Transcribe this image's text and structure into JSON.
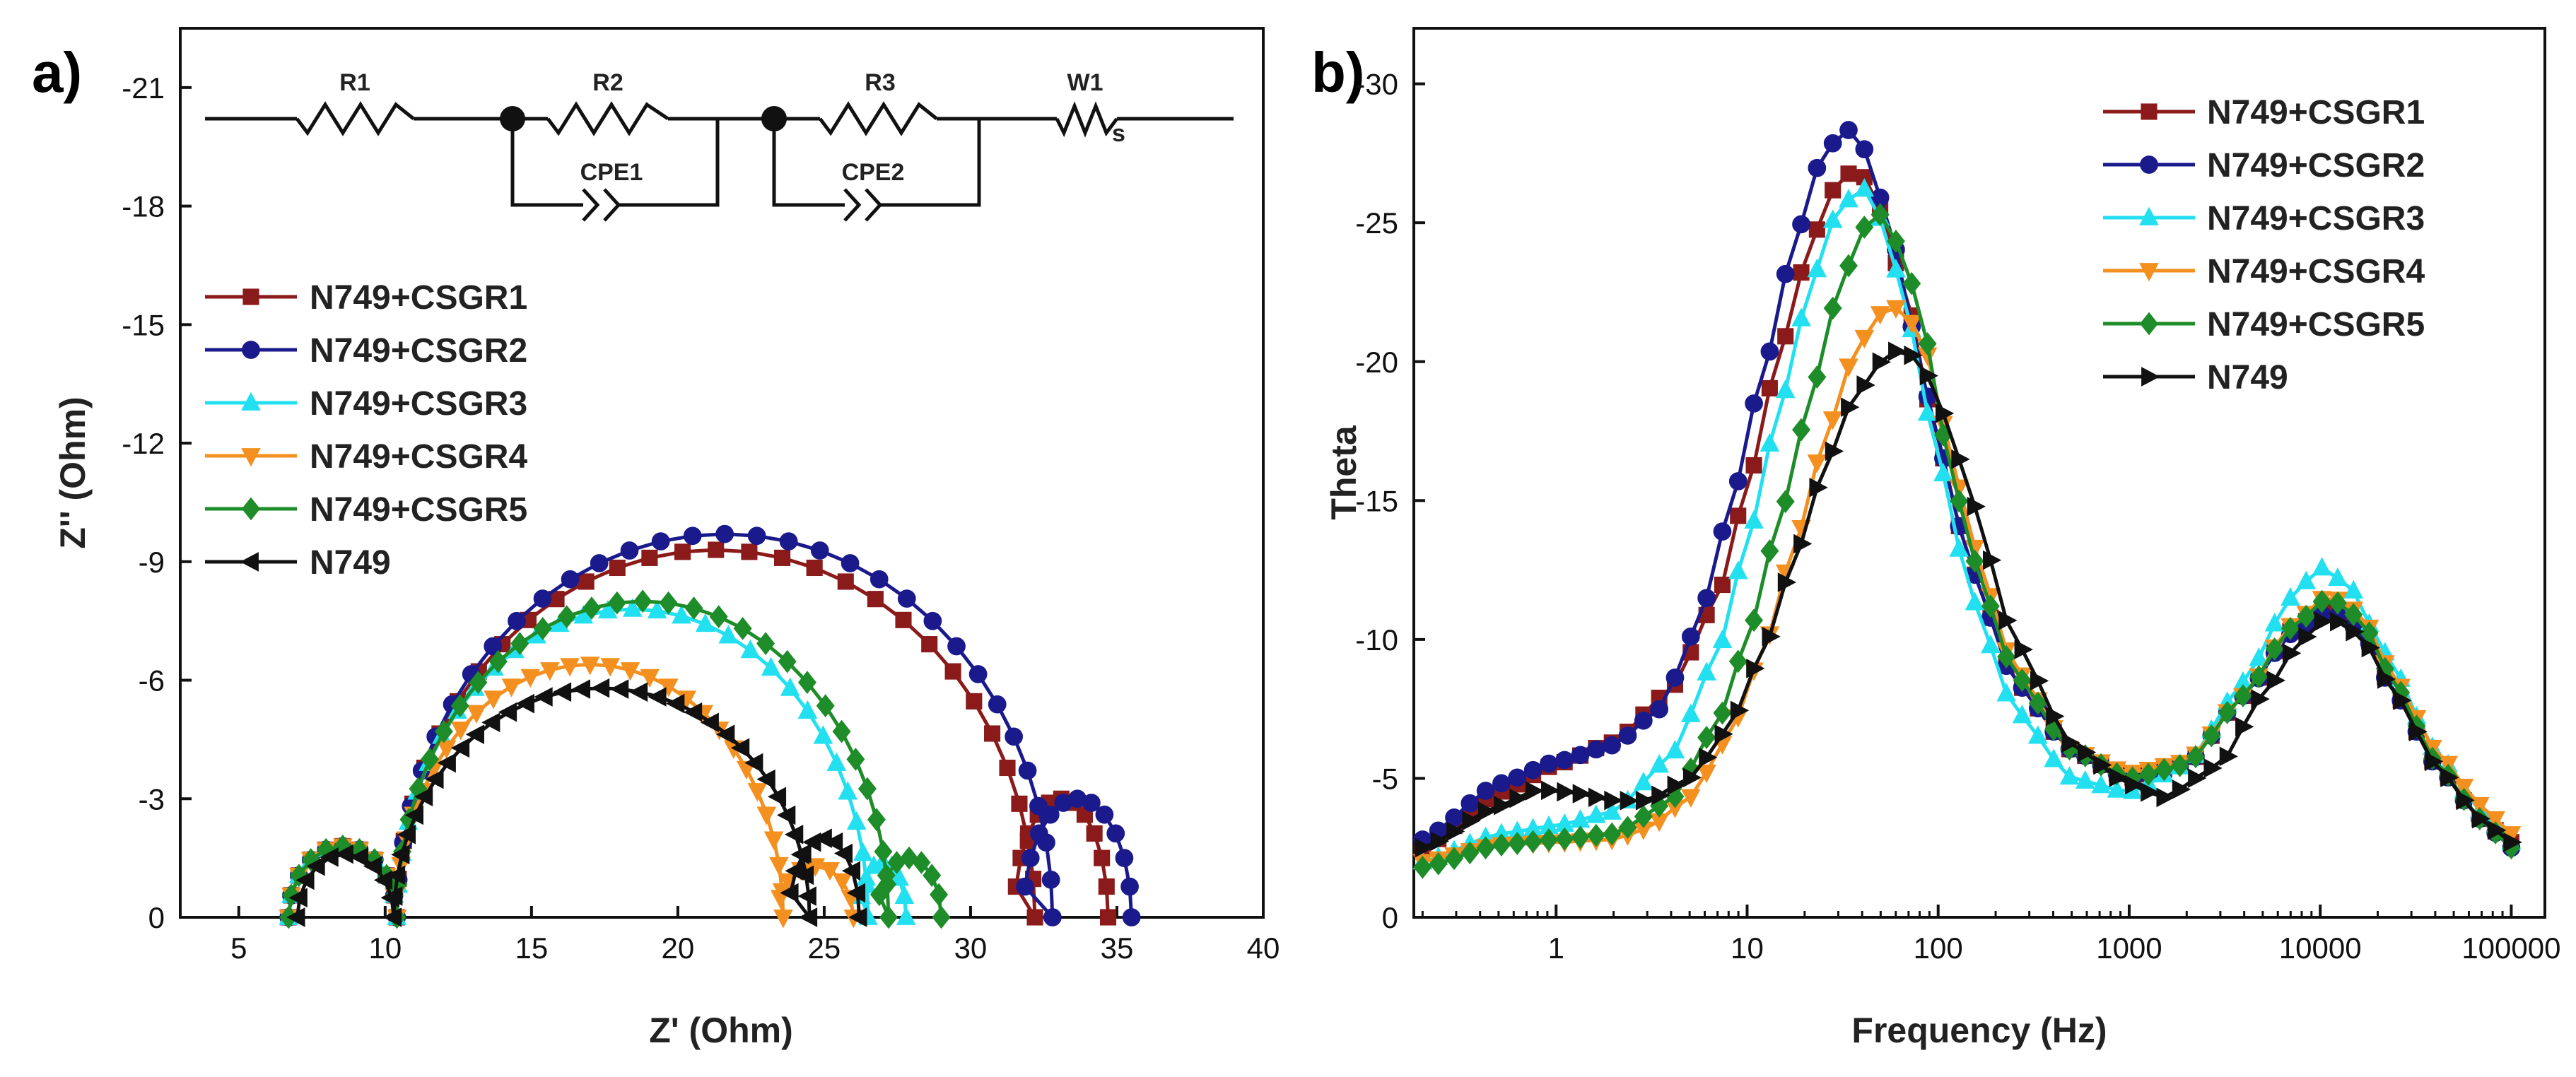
{
  "panels": {
    "a": {
      "label": "a)"
    },
    "b": {
      "label": "b)"
    }
  },
  "circuit": {
    "labels": [
      "R1",
      "R2",
      "R3",
      "W1",
      "CPE1",
      "CPE2"
    ],
    "warburg_subscript": "s"
  },
  "legend_entries": [
    "N749+CSGR1",
    "N749+CSGR2",
    "N749+CSGR3",
    "N749+CSGR4",
    "N749+CSGR5",
    "N749"
  ],
  "colors": {
    "N749+CSGR1": "#8b1a1a",
    "N749+CSGR2": "#1a1a8c",
    "N749+CSGR3": "#22e0f0",
    "N749+CSGR4": "#f39020",
    "N749+CSGR5": "#1e8c28",
    "N749": "#111111"
  },
  "chart_data": [
    {
      "id": "nyquist",
      "type": "scatter",
      "title": "",
      "xlabel": "Z' (Ohm)",
      "ylabel": "Z'' (Ohm)",
      "xlim": [
        3,
        40
      ],
      "ylim": [
        0,
        -22.5
      ],
      "xticks": [
        5,
        10,
        15,
        20,
        25,
        30,
        35,
        40
      ],
      "xtick_labels": [
        "5",
        "10",
        "15",
        "20",
        "25",
        "30",
        "35",
        "40"
      ],
      "yticks": [
        0,
        -3,
        -6,
        -9,
        -12,
        -15,
        -18,
        -21
      ],
      "ytick_labels": [
        "0",
        "-3",
        "-6",
        "-9",
        "-12",
        "-15",
        "-18",
        "-21"
      ],
      "legend_position": "left-middle",
      "series": [
        {
          "name": "N749+CSGR1",
          "marker": "square",
          "arcs": [
            {
              "x0": 6.7,
              "x1": 10.4,
              "h": 1.8
            },
            {
              "x0": 10.4,
              "x1": 32.2,
              "h": 9.3
            },
            {
              "x0": 31.5,
              "x1": 34.7,
              "h": 3.0
            }
          ],
          "npts": [
            10,
            30,
            12
          ]
        },
        {
          "name": "N749+CSGR2",
          "marker": "circle",
          "arcs": [
            {
              "x0": 6.7,
              "x1": 10.4,
              "h": 1.8
            },
            {
              "x0": 10.4,
              "x1": 32.8,
              "h": 9.7
            },
            {
              "x0": 31.8,
              "x1": 35.5,
              "h": 3.0
            }
          ],
          "npts": [
            10,
            32,
            12
          ]
        },
        {
          "name": "N749+CSGR3",
          "marker": "triangle-up",
          "arcs": [
            {
              "x0": 6.7,
              "x1": 10.4,
              "h": 1.8
            },
            {
              "x0": 10.4,
              "x1": 26.5,
              "h": 7.8
            },
            {
              "x0": 26.2,
              "x1": 27.8,
              "h": 1.4
            }
          ],
          "npts": [
            10,
            30,
            8
          ]
        },
        {
          "name": "N749+CSGR4",
          "marker": "triangle-down",
          "arcs": [
            {
              "x0": 6.7,
              "x1": 10.4,
              "h": 1.8
            },
            {
              "x0": 10.4,
              "x1": 23.6,
              "h": 6.4
            },
            {
              "x0": 23.4,
              "x1": 26.0,
              "h": 1.3
            }
          ],
          "npts": [
            10,
            30,
            8
          ]
        },
        {
          "name": "N749+CSGR5",
          "marker": "diamond",
          "arcs": [
            {
              "x0": 6.7,
              "x1": 10.4,
              "h": 1.8
            },
            {
              "x0": 10.4,
              "x1": 27.2,
              "h": 8.0
            },
            {
              "x0": 26.8,
              "x1": 29.0,
              "h": 1.5
            }
          ],
          "npts": [
            10,
            30,
            8
          ]
        },
        {
          "name": "N749",
          "marker": "triangle-left",
          "arcs": [
            {
              "x0": 7.0,
              "x1": 10.3,
              "h": 1.6
            },
            {
              "x0": 10.3,
              "x1": 24.5,
              "h": 5.8
            },
            {
              "x0": 23.8,
              "x1": 26.2,
              "h": 2.0
            }
          ],
          "npts": [
            10,
            34,
            10
          ]
        }
      ]
    },
    {
      "id": "bode",
      "type": "line",
      "title": "",
      "xlabel": "Frequency (Hz)",
      "ylabel": "Theta",
      "xscale": "log",
      "xlim": [
        0.18,
        150000
      ],
      "ylim": [
        0,
        -32
      ],
      "xticks": [
        1,
        10,
        100,
        1000,
        10000,
        100000
      ],
      "xtick_labels": [
        "1",
        "10",
        "100",
        "1000",
        "10000",
        "100000"
      ],
      "yticks": [
        0,
        -5,
        -10,
        -15,
        -20,
        -25,
        -30
      ],
      "ytick_labels": [
        "0",
        "-5",
        "-10",
        "-15",
        "-20",
        "-25",
        "-30"
      ],
      "legend_position": "top-right",
      "freq_range": [
        0.2,
        100000
      ],
      "series": [
        {
          "name": "N749+CSGR1",
          "marker": "square",
          "points": [
            [
              0.2,
              -2.5
            ],
            [
              0.5,
              -4.5
            ],
            [
              1,
              -5.5
            ],
            [
              2,
              -6.3
            ],
            [
              4,
              -8.2
            ],
            [
              7,
              -11.5
            ],
            [
              10,
              -15.5
            ],
            [
              15,
              -20.5
            ],
            [
              22,
              -24.5
            ],
            [
              30,
              -26.5
            ],
            [
              38,
              -27.0
            ],
            [
              50,
              -25.5
            ],
            [
              70,
              -22.0
            ],
            [
              100,
              -17.0
            ],
            [
              150,
              -12.5
            ],
            [
              250,
              -8.5
            ],
            [
              500,
              -6.0
            ],
            [
              1000,
              -5.0
            ],
            [
              2000,
              -5.5
            ],
            [
              4000,
              -8.0
            ],
            [
              7000,
              -10.3
            ],
            [
              11000,
              -11.2
            ],
            [
              16000,
              -10.5
            ],
            [
              25000,
              -8.0
            ],
            [
              40000,
              -5.5
            ],
            [
              70000,
              -3.5
            ],
            [
              100000,
              -2.7
            ]
          ]
        },
        {
          "name": "N749+CSGR2",
          "marker": "circle",
          "points": [
            [
              0.2,
              -2.8
            ],
            [
              0.5,
              -4.8
            ],
            [
              1,
              -5.6
            ],
            [
              2,
              -6.2
            ],
            [
              3.5,
              -7.5
            ],
            [
              5.5,
              -10.5
            ],
            [
              8,
              -14.5
            ],
            [
              12,
              -19.5
            ],
            [
              18,
              -24.5
            ],
            [
              25,
              -27.5
            ],
            [
              33,
              -28.4
            ],
            [
              42,
              -27.6
            ],
            [
              55,
              -25.0
            ],
            [
              75,
              -21.0
            ],
            [
              100,
              -17.0
            ],
            [
              150,
              -12.5
            ],
            [
              250,
              -8.5
            ],
            [
              500,
              -6.0
            ],
            [
              1000,
              -5.0
            ],
            [
              2000,
              -5.5
            ],
            [
              4000,
              -8.0
            ],
            [
              7000,
              -10.2
            ],
            [
              11000,
              -11.0
            ],
            [
              16000,
              -10.4
            ],
            [
              25000,
              -8.0
            ],
            [
              40000,
              -5.5
            ],
            [
              70000,
              -3.5
            ],
            [
              100000,
              -2.5
            ]
          ]
        },
        {
          "name": "N749+CSGR3",
          "marker": "triangle-up",
          "points": [
            [
              0.2,
              -2.0
            ],
            [
              0.5,
              -3.0
            ],
            [
              1,
              -3.3
            ],
            [
              2,
              -3.8
            ],
            [
              4,
              -5.8
            ],
            [
              7,
              -9.5
            ],
            [
              10,
              -13.5
            ],
            [
              15,
              -18.5
            ],
            [
              22,
              -23.0
            ],
            [
              30,
              -25.5
            ],
            [
              40,
              -26.3
            ],
            [
              52,
              -25.0
            ],
            [
              70,
              -21.5
            ],
            [
              100,
              -16.5
            ],
            [
              150,
              -11.5
            ],
            [
              250,
              -7.5
            ],
            [
              500,
              -5.0
            ],
            [
              1000,
              -4.5
            ],
            [
              2000,
              -5.5
            ],
            [
              4000,
              -8.5
            ],
            [
              7000,
              -11.5
            ],
            [
              10000,
              -12.6
            ],
            [
              14000,
              -12.0
            ],
            [
              22000,
              -9.5
            ],
            [
              40000,
              -6.0
            ],
            [
              70000,
              -3.8
            ],
            [
              100000,
              -2.7
            ]
          ]
        },
        {
          "name": "N749+CSGR4",
          "marker": "triangle-down",
          "points": [
            [
              0.2,
              -2.0
            ],
            [
              0.5,
              -2.6
            ],
            [
              1,
              -2.7
            ],
            [
              2,
              -2.8
            ],
            [
              3,
              -3.2
            ],
            [
              5,
              -4.3
            ],
            [
              8,
              -6.5
            ],
            [
              12,
              -9.5
            ],
            [
              18,
              -13.5
            ],
            [
              25,
              -17.0
            ],
            [
              35,
              -20.0
            ],
            [
              48,
              -21.7
            ],
            [
              65,
              -22.0
            ],
            [
              85,
              -20.5
            ],
            [
              110,
              -17.5
            ],
            [
              150,
              -13.5
            ],
            [
              250,
              -9.0
            ],
            [
              500,
              -6.0
            ],
            [
              1000,
              -5.2
            ],
            [
              2000,
              -5.6
            ],
            [
              4000,
              -8.0
            ],
            [
              7000,
              -10.5
            ],
            [
              11000,
              -11.6
            ],
            [
              16000,
              -11.0
            ],
            [
              25000,
              -8.5
            ],
            [
              40000,
              -6.0
            ],
            [
              70000,
              -4.0
            ],
            [
              100000,
              -3.0
            ]
          ]
        },
        {
          "name": "N749+CSGR5",
          "marker": "diamond",
          "points": [
            [
              0.2,
              -1.8
            ],
            [
              0.5,
              -2.6
            ],
            [
              1,
              -2.8
            ],
            [
              2,
              -3.0
            ],
            [
              4,
              -4.2
            ],
            [
              7,
              -7.0
            ],
            [
              10,
              -10.0
            ],
            [
              15,
              -14.5
            ],
            [
              22,
              -19.0
            ],
            [
              30,
              -22.5
            ],
            [
              40,
              -24.8
            ],
            [
              50,
              -25.3
            ],
            [
              65,
              -24.0
            ],
            [
              85,
              -21.0
            ],
            [
              110,
              -17.0
            ],
            [
              150,
              -13.0
            ],
            [
              250,
              -8.8
            ],
            [
              500,
              -6.0
            ],
            [
              1000,
              -5.0
            ],
            [
              2000,
              -5.5
            ],
            [
              4000,
              -8.0
            ],
            [
              7000,
              -10.4
            ],
            [
              11000,
              -11.5
            ],
            [
              16000,
              -10.8
            ],
            [
              25000,
              -8.3
            ],
            [
              40000,
              -5.6
            ],
            [
              70000,
              -3.5
            ],
            [
              100000,
              -2.5
            ]
          ]
        },
        {
          "name": "N749",
          "marker": "triangle-right",
          "points": [
            [
              0.2,
              -2.5
            ],
            [
              0.5,
              -4.0
            ],
            [
              0.8,
              -4.6
            ],
            [
              1.2,
              -4.5
            ],
            [
              2,
              -4.2
            ],
            [
              3,
              -4.2
            ],
            [
              5,
              -5.0
            ],
            [
              8,
              -6.8
            ],
            [
              12,
              -9.5
            ],
            [
              18,
              -13.0
            ],
            [
              25,
              -16.0
            ],
            [
              35,
              -18.5
            ],
            [
              50,
              -20.0
            ],
            [
              65,
              -20.5
            ],
            [
              80,
              -20.0
            ],
            [
              110,
              -18.0
            ],
            [
              150,
              -15.0
            ],
            [
              250,
              -10.0
            ],
            [
              500,
              -6.2
            ],
            [
              1000,
              -4.8
            ],
            [
              1500,
              -4.3
            ],
            [
              3000,
              -5.5
            ],
            [
              5000,
              -8.0
            ],
            [
              8000,
              -10.0
            ],
            [
              11000,
              -10.8
            ],
            [
              16000,
              -10.2
            ],
            [
              25000,
              -8.0
            ],
            [
              40000,
              -5.5
            ],
            [
              70000,
              -3.5
            ],
            [
              100000,
              -2.7
            ]
          ]
        }
      ]
    }
  ]
}
